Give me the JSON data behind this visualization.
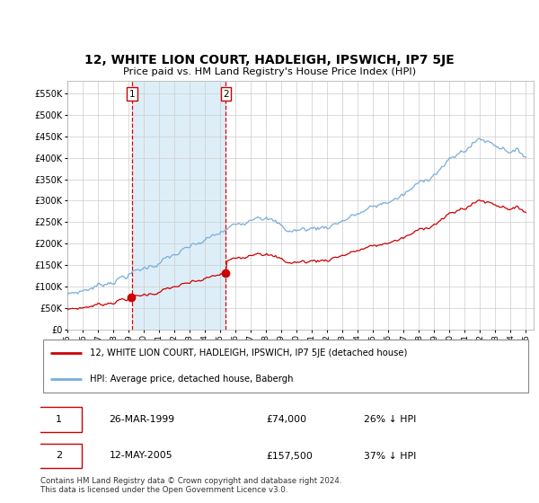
{
  "title": "12, WHITE LION COURT, HADLEIGH, IPSWICH, IP7 5JE",
  "subtitle": "Price paid vs. HM Land Registry's House Price Index (HPI)",
  "ylabel_ticks": [
    "£0",
    "£50K",
    "£100K",
    "£150K",
    "£200K",
    "£250K",
    "£300K",
    "£350K",
    "£400K",
    "£450K",
    "£500K",
    "£550K"
  ],
  "ytick_values": [
    0,
    50000,
    100000,
    150000,
    200000,
    250000,
    300000,
    350000,
    400000,
    450000,
    500000,
    550000
  ],
  "ylim": [
    0,
    580000
  ],
  "xlim_start": 1995.0,
  "xlim_end": 2025.5,
  "sale1_year": 1999.22,
  "sale1_price": 74000,
  "sale1_label": "1",
  "sale1_date": "26-MAR-1999",
  "sale1_pct": "26% ↓ HPI",
  "sale2_year": 2005.37,
  "sale2_price": 157500,
  "sale2_label": "2",
  "sale2_date": "12-MAY-2005",
  "sale2_pct": "37% ↓ HPI",
  "property_color": "#cc0000",
  "hpi_color": "#7aadda",
  "hpi_shade_color": "#ddeef8",
  "grid_color": "#cccccc",
  "background_color": "#ffffff",
  "legend_label_property": "12, WHITE LION COURT, HADLEIGH, IPSWICH, IP7 5JE (detached house)",
  "legend_label_hpi": "HPI: Average price, detached house, Babergh",
  "footer": "Contains HM Land Registry data © Crown copyright and database right 2024.\nThis data is licensed under the Open Government Licence v3.0.",
  "xtick_years": [
    1995,
    1996,
    1997,
    1998,
    1999,
    2000,
    2001,
    2002,
    2003,
    2004,
    2005,
    2006,
    2007,
    2008,
    2009,
    2010,
    2011,
    2012,
    2013,
    2014,
    2015,
    2016,
    2017,
    2018,
    2019,
    2020,
    2021,
    2022,
    2023,
    2024,
    2025
  ]
}
